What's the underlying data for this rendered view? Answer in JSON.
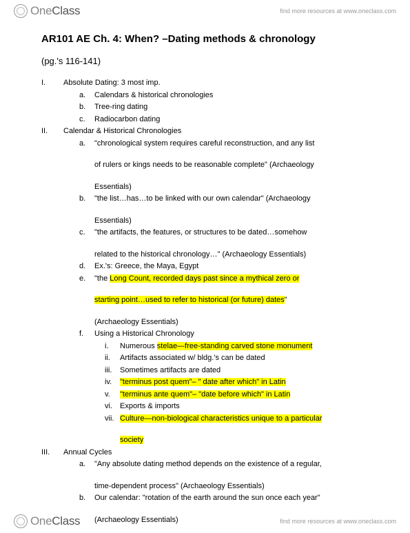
{
  "brand": {
    "name_a": "One",
    "name_b": "Class",
    "tagline": "find more resources at www.oneclass.com"
  },
  "title": "AR101 AE Ch. 4: When? –Dating methods & chronology",
  "subtitle": "(pg.'s 116-141)",
  "I": {
    "num": "I.",
    "text": "Absolute Dating: 3 most imp.",
    "a": {
      "num": "a.",
      "text": "Calendars & historical chronologies"
    },
    "b": {
      "num": "b.",
      "text": "Tree-ring dating"
    },
    "c": {
      "num": "c.",
      "text": "Radiocarbon dating"
    }
  },
  "II": {
    "num": "II.",
    "text": "Calendar & Historical Chronologies",
    "a": {
      "num": "a.",
      "line1": "\"chronological system requires careful reconstruction, and any list",
      "line2": "of rulers or kings needs to be reasonable complete\" (Archaeology",
      "line3": "Essentials)"
    },
    "b": {
      "num": "b.",
      "line1": "\"the list…has…to be linked with our own calendar\" (Archaeology",
      "line2": "Essentials)"
    },
    "c": {
      "num": "c.",
      "line1": "\"the artifacts, the features, or structures to be dated…somehow",
      "line2": "related to the historical chronology…\" (Archaeology Essentials)"
    },
    "d": {
      "num": "d.",
      "text": "Ex.'s: Greece, the Maya, Egypt"
    },
    "e": {
      "num": "e.",
      "pre": "\"the ",
      "hl1": "Long Count, recorded days past since a mythical zero or",
      "hl2": "starting point…used to refer to historical (or future) dates",
      "post": "\"",
      "line3": "(Archaeology Essentials)"
    },
    "f": {
      "num": "f.",
      "text": "Using a Historical Chronology",
      "i": {
        "num": "i.",
        "pre": "Numerous ",
        "hl": "stelae—free-standing carved stone monument"
      },
      "ii": {
        "num": "ii.",
        "text": "Artifacts associated w/ bldg.'s can be dated"
      },
      "iii": {
        "num": "iii.",
        "text": "Sometimes artifacts are dated"
      },
      "iv": {
        "num": "iv.",
        "hl": "\"terminus post quem\"– \" date after which\" in Latin"
      },
      "v": {
        "num": "v.",
        "hl": "\"terminus ante quem\"– \"date before which\" in Latin"
      },
      "vi": {
        "num": "vi.",
        "text": "Exports & imports"
      },
      "vii": {
        "num": "vii.",
        "hl1": "Culture—non-biological characteristics unique to a particular",
        "hl2": "society"
      }
    }
  },
  "III": {
    "num": "III.",
    "text": "Annual Cycles",
    "a": {
      "num": "a.",
      "line1": "\"Any absolute dating method depends on the existence of a regular,",
      "line2": "time-dependent process\" (Archaeology Essentials)"
    },
    "b": {
      "num": "b.",
      "line1": "Our calendar: \"rotation of the earth around the sun once each year\"",
      "line2": "(Archaeology Essentials)"
    }
  },
  "colors": {
    "highlight": "#ffff00",
    "background": "#ffffff",
    "text": "#000000",
    "brand_gray": "#888888"
  },
  "fontsize": {
    "title": 15,
    "subtitle": 13,
    "body": 11,
    "brand": 17,
    "tag": 9
  }
}
